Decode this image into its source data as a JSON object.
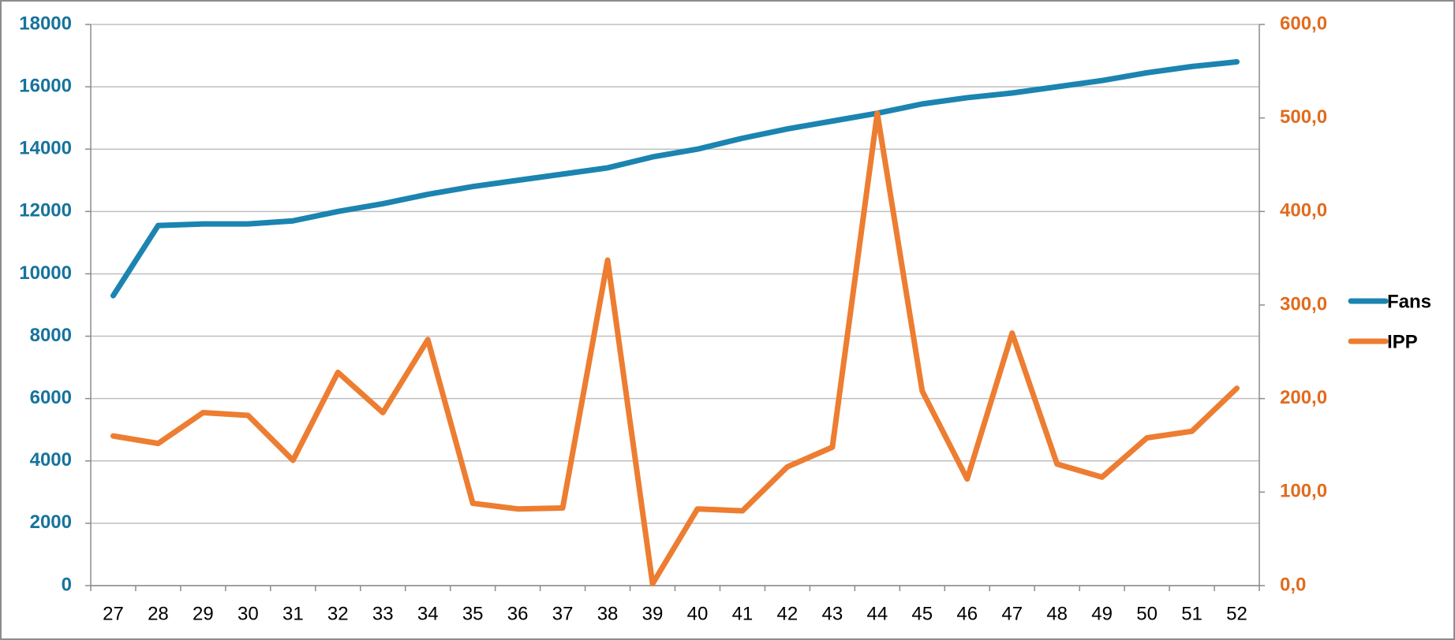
{
  "chart_data": {
    "type": "line",
    "categories": [
      "27",
      "28",
      "29",
      "30",
      "31",
      "32",
      "33",
      "34",
      "35",
      "36",
      "37",
      "38",
      "39",
      "40",
      "41",
      "42",
      "43",
      "44",
      "45",
      "46",
      "47",
      "48",
      "49",
      "50",
      "51",
      "52"
    ],
    "series": [
      {
        "name": "Fans",
        "color": "#1b84b0",
        "values": [
          9300,
          11550,
          11600,
          11600,
          11700,
          12000,
          12250,
          12550,
          12800,
          13000,
          13200,
          13400,
          13750,
          14000,
          14350,
          14650,
          14900,
          15150,
          15450,
          15650,
          15800,
          16000,
          16200,
          16450,
          16650,
          16800
        ]
      },
      {
        "name": "IPP",
        "color": "#ed7d31",
        "axis": "y2",
        "values": [
          160,
          152,
          185,
          182,
          134,
          228,
          185,
          263,
          88,
          82,
          83,
          348,
          2,
          82,
          80,
          127,
          148,
          505,
          208,
          114,
          270,
          130,
          116,
          158,
          165,
          211
        ]
      }
    ],
    "ylim": [
      0,
      18000
    ],
    "yticks": [
      0,
      2000,
      4000,
      6000,
      8000,
      10000,
      12000,
      14000,
      16000,
      18000
    ],
    "y2lim": [
      0,
      600
    ],
    "y2ticks": [
      {
        "value": 0,
        "label": "0,0"
      },
      {
        "value": 100,
        "label": "100,0"
      },
      {
        "value": 200,
        "label": "200,0"
      },
      {
        "value": 300,
        "label": "300,0"
      },
      {
        "value": 400,
        "label": "400,0"
      },
      {
        "value": 500,
        "label": "500,0"
      },
      {
        "value": 600,
        "label": "600,0"
      }
    ],
    "yaxis_color": "#17739c",
    "y2axis_color": "#e06c1f",
    "grid": true,
    "legend": "right"
  }
}
